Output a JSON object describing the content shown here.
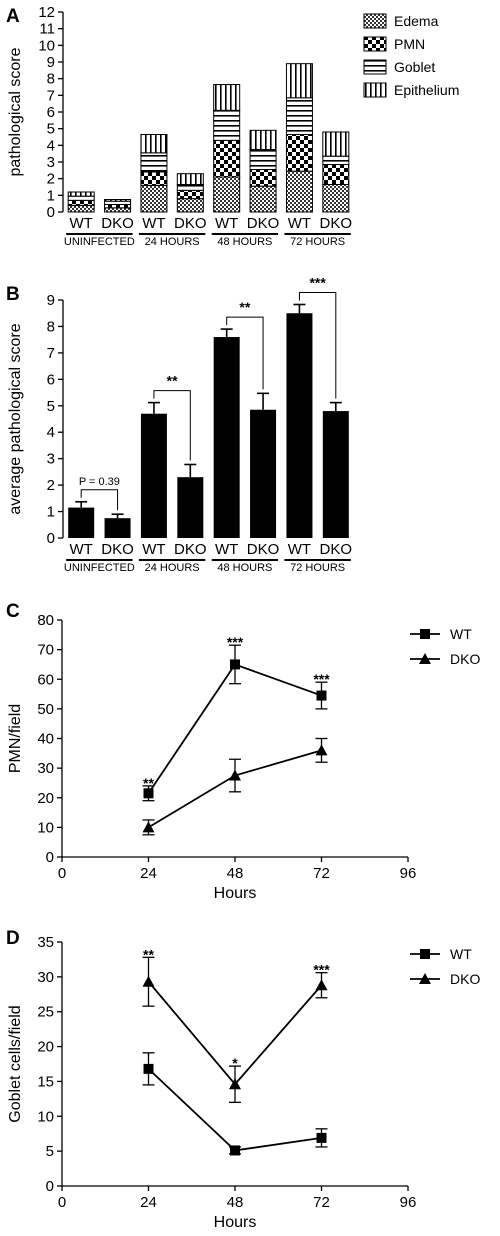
{
  "chart_data": [
    {
      "panel": "A",
      "type": "bar",
      "stacked": true,
      "ylabel": "pathological score",
      "xlabel": "",
      "ylim": [
        0,
        12
      ],
      "yticks": [
        0,
        1,
        2,
        3,
        4,
        5,
        6,
        7,
        8,
        9,
        10,
        11,
        12
      ],
      "categories": [
        "WT",
        "DKO",
        "WT",
        "DKO",
        "WT",
        "DKO",
        "WT",
        "DKO"
      ],
      "groups": [
        "UNINFECTED",
        "24 HOURS",
        "48 HOURS",
        "72 HOURS"
      ],
      "series": [
        {
          "name": "Edema",
          "pattern": "edema",
          "values": [
            0.4,
            0.25,
            1.6,
            0.8,
            2.1,
            1.55,
            2.45,
            1.65
          ]
        },
        {
          "name": "PMN",
          "pattern": "pmn",
          "values": [
            0.3,
            0.2,
            0.8,
            0.5,
            2.2,
            1.0,
            2.2,
            1.2
          ]
        },
        {
          "name": "Goblet",
          "pattern": "goblet",
          "values": [
            0.25,
            0.2,
            1.15,
            0.35,
            1.8,
            1.2,
            2.2,
            0.5
          ]
        },
        {
          "name": "Epithelium",
          "pattern": "epithelium",
          "values": [
            0.25,
            0.1,
            1.1,
            0.65,
            1.55,
            1.15,
            2.05,
            1.45
          ]
        }
      ],
      "legend_position": "top-right"
    },
    {
      "panel": "B",
      "type": "bar",
      "ylabel": "average pathological score",
      "xlabel": "",
      "ylim": [
        0,
        9
      ],
      "yticks": [
        0,
        1,
        2,
        3,
        4,
        5,
        6,
        7,
        8,
        9
      ],
      "categories": [
        "WT",
        "DKO",
        "WT",
        "DKO",
        "WT",
        "DKO",
        "WT",
        "DKO"
      ],
      "groups": [
        "UNINFECTED",
        "24 HOURS",
        "48 HOURS",
        "72 HOURS"
      ],
      "values": [
        1.15,
        0.75,
        4.7,
        2.3,
        7.6,
        4.85,
        8.5,
        4.8
      ],
      "errors": [
        0.22,
        0.15,
        0.42,
        0.48,
        0.3,
        0.62,
        0.33,
        0.32
      ],
      "brackets": [
        {
          "from": 0,
          "to": 1,
          "label": "P = 0.39"
        },
        {
          "from": 2,
          "to": 3,
          "label": "**"
        },
        {
          "from": 4,
          "to": 5,
          "label": "**"
        },
        {
          "from": 6,
          "to": 7,
          "label": "***"
        }
      ],
      "bar_color": "#000000"
    },
    {
      "panel": "C",
      "type": "line",
      "ylabel": "PMN/field",
      "xlabel": "Hours",
      "xlim": [
        0,
        96
      ],
      "xticks": [
        0,
        24,
        48,
        72,
        96
      ],
      "ylim": [
        0,
        80
      ],
      "yticks": [
        0,
        10,
        20,
        30,
        40,
        50,
        60,
        70,
        80
      ],
      "series": [
        {
          "name": "WT",
          "marker": "square",
          "x": [
            24,
            48,
            72
          ],
          "y": [
            21.5,
            65,
            54.5
          ],
          "err": [
            2.5,
            6.5,
            4.5
          ]
        },
        {
          "name": "DKO",
          "marker": "triangle",
          "x": [
            24,
            48,
            72
          ],
          "y": [
            10,
            27.5,
            36
          ],
          "err": [
            2.5,
            5.5,
            4
          ]
        }
      ],
      "annotations": [
        {
          "x": 24,
          "y": 24,
          "label": "**"
        },
        {
          "x": 48,
          "y": 71.5,
          "label": "***"
        },
        {
          "x": 72,
          "y": 59,
          "label": "***"
        }
      ],
      "legend_position": "top-right"
    },
    {
      "panel": "D",
      "type": "line",
      "ylabel": "Goblet cells/field",
      "xlabel": "Hours",
      "xlim": [
        0,
        96
      ],
      "xticks": [
        0,
        24,
        48,
        72,
        96
      ],
      "ylim": [
        0,
        35
      ],
      "yticks": [
        0,
        5,
        10,
        15,
        20,
        25,
        30,
        35
      ],
      "series": [
        {
          "name": "WT",
          "marker": "square",
          "x": [
            24,
            48,
            72
          ],
          "y": [
            16.8,
            5.1,
            6.9
          ],
          "err": [
            2.3,
            0.5,
            1.3
          ]
        },
        {
          "name": "DKO",
          "marker": "triangle",
          "x": [
            24,
            48,
            72
          ],
          "y": [
            29.3,
            14.6,
            28.8
          ],
          "err": [
            3.5,
            2.6,
            1.8
          ]
        }
      ],
      "annotations": [
        {
          "x": 24,
          "y": 32.8,
          "label": "**"
        },
        {
          "x": 48,
          "y": 17.2,
          "label": "*"
        },
        {
          "x": 72,
          "y": 30.6,
          "label": "***"
        }
      ],
      "legend_position": "top-right"
    }
  ]
}
